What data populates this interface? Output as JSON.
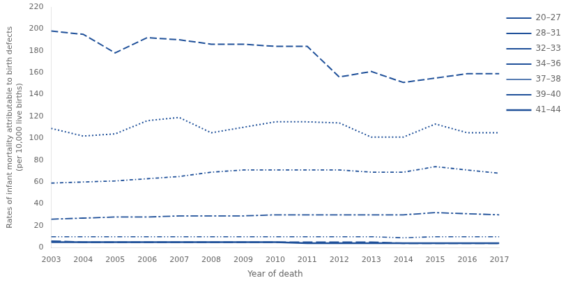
{
  "chart_data": {
    "type": "line",
    "xlabel": "Year of death",
    "ylabel": "Rates of infant mortality attributable to birth defects\n(per 10,000 live births)",
    "x": [
      2003,
      2004,
      2005,
      2006,
      2007,
      2008,
      2009,
      2010,
      2011,
      2012,
      2013,
      2014,
      2015,
      2016,
      2017
    ],
    "xlim": [
      2003,
      2017
    ],
    "xticks": [
      2003,
      2004,
      2005,
      2006,
      2007,
      2008,
      2009,
      2010,
      2011,
      2012,
      2013,
      2014,
      2015,
      2016,
      2017
    ],
    "ylim": [
      0,
      220
    ],
    "yticks": [
      0,
      20,
      40,
      60,
      80,
      100,
      120,
      140,
      160,
      180,
      200,
      220
    ],
    "grid": false,
    "legend": "right",
    "series": [
      {
        "name": "20–27",
        "color": "#1f5099",
        "line_style": "dashed",
        "values": [
          198,
          195,
          178,
          192,
          190,
          186,
          186,
          184,
          184,
          156,
          161,
          151,
          155,
          159,
          159
        ]
      },
      {
        "name": "28–31",
        "color": "#1f5099",
        "line_style": "dotted",
        "values": [
          109,
          102,
          104,
          116,
          119,
          105,
          110,
          115,
          115,
          114,
          101,
          101,
          113,
          105,
          105
        ]
      },
      {
        "name": "32–33",
        "color": "#1f5099",
        "line_style": "dashdot",
        "values": [
          59,
          60,
          61,
          63,
          65,
          69,
          71,
          71,
          71,
          71,
          69,
          69,
          74,
          71,
          68
        ]
      },
      {
        "name": "34–36",
        "color": "#1f5099",
        "line_style": "longdashdot",
        "values": [
          26,
          27,
          28,
          28,
          29,
          29,
          29,
          30,
          30,
          30,
          30,
          30,
          32,
          31,
          30
        ]
      },
      {
        "name": "37–38",
        "color": "#1f5099",
        "line_style": "dashdotdot",
        "values": [
          10,
          10,
          10,
          10,
          10,
          10,
          10,
          10,
          10,
          10,
          10,
          9,
          10,
          10,
          10
        ]
      },
      {
        "name": "39–40",
        "color": "#1f5099",
        "line_style": "longdash",
        "values": [
          6,
          5,
          5,
          5,
          5,
          5,
          5,
          5,
          5,
          5,
          5,
          4,
          4,
          4,
          4
        ]
      },
      {
        "name": "41–44",
        "color": "#1f5099",
        "line_style": "solid",
        "values": [
          5,
          5,
          5,
          5,
          5,
          5,
          5,
          5,
          4,
          4,
          4,
          4,
          4,
          4,
          4
        ]
      }
    ]
  }
}
